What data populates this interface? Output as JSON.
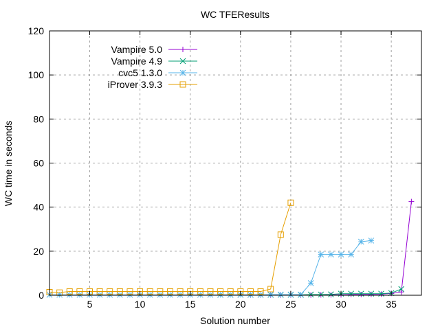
{
  "chart_data": {
    "type": "line",
    "title": "WC TFEResults",
    "xlabel": "Solution number",
    "ylabel": "WC time in seconds",
    "xlim": [
      1,
      38
    ],
    "ylim": [
      0,
      120
    ],
    "xticks": [
      5,
      10,
      15,
      20,
      25,
      30,
      35
    ],
    "yticks": [
      0,
      20,
      40,
      60,
      80,
      100,
      120
    ],
    "grid": true,
    "legend_position": "top-left",
    "series": [
      {
        "name": "Vampire 5.0",
        "color": "#9400d3",
        "marker": "plus",
        "x": [
          21,
          22,
          23,
          24,
          25,
          26,
          27,
          28,
          29,
          30,
          31,
          32,
          33,
          34,
          35,
          36,
          37
        ],
        "y": [
          0.1,
          0.1,
          0.1,
          0.1,
          0.1,
          0.1,
          0.1,
          0.2,
          0.2,
          0.2,
          0.3,
          0.3,
          0.4,
          0.5,
          0.8,
          1.5,
          42.5
        ]
      },
      {
        "name": "Vampire 4.9",
        "color": "#009e73",
        "marker": "cross",
        "x": [
          18,
          19,
          20,
          21,
          22,
          23,
          24,
          25,
          26,
          27,
          28,
          29,
          30,
          31,
          32,
          33,
          34,
          35,
          36
        ],
        "y": [
          0.2,
          0.2,
          0.2,
          0.2,
          0.2,
          0.2,
          0.2,
          0.2,
          0.2,
          0.3,
          0.3,
          0.4,
          0.7,
          0.7,
          0.7,
          0.7,
          0.7,
          1.0,
          2.8
        ]
      },
      {
        "name": "cvc5 1.3.0",
        "color": "#56b4e9",
        "marker": "star",
        "x": [
          1,
          2,
          3,
          4,
          5,
          6,
          7,
          8,
          9,
          10,
          11,
          12,
          13,
          14,
          15,
          16,
          17,
          18,
          19,
          20,
          21,
          22,
          23,
          24,
          25,
          26,
          27,
          28,
          29,
          30,
          31,
          32,
          33
        ],
        "y": [
          0.2,
          0.2,
          0.2,
          0.2,
          0.2,
          0.2,
          0.2,
          0.2,
          0.2,
          0.2,
          0.2,
          0.2,
          0.2,
          0.2,
          0.2,
          0.2,
          0.2,
          0.2,
          0.2,
          0.2,
          0.2,
          0.2,
          0.3,
          0.3,
          0.3,
          0.3,
          5.5,
          18.5,
          18.5,
          18.5,
          18.5,
          24.3,
          24.8
        ]
      },
      {
        "name": "iProver 3.9.3",
        "color": "#e69f00",
        "marker": "square",
        "x": [
          1,
          2,
          3,
          4,
          5,
          6,
          7,
          8,
          9,
          10,
          11,
          12,
          13,
          14,
          15,
          16,
          17,
          18,
          19,
          20,
          21,
          22,
          23,
          24,
          25
        ],
        "y": [
          1.4,
          1.2,
          1.7,
          1.7,
          1.7,
          1.7,
          1.7,
          1.7,
          1.7,
          1.7,
          1.7,
          1.7,
          1.7,
          1.7,
          1.7,
          1.7,
          1.7,
          1.7,
          1.7,
          1.7,
          1.7,
          1.7,
          2.8,
          27.5,
          42
        ]
      }
    ]
  }
}
